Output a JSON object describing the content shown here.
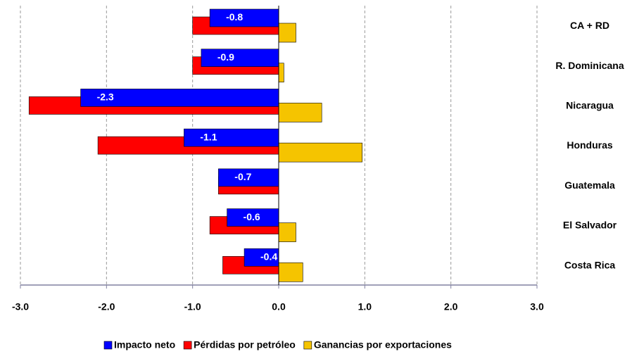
{
  "chart_data": {
    "type": "bar",
    "categories": [
      "CA + RD",
      "R. Dominicana",
      "Nicaragua",
      "Honduras",
      "Guatemala",
      "El Salvador",
      "Costa Rica"
    ],
    "series": [
      {
        "name": "Impacto neto",
        "color": "#0000ff",
        "values": [
          -0.8,
          -0.9,
          -2.3,
          -1.1,
          -0.7,
          -0.6,
          -0.4
        ]
      },
      {
        "name": "Pérdidas por petróleo",
        "color": "#ff0000",
        "values": [
          -1.0,
          -1.0,
          -2.9,
          -2.1,
          -0.7,
          -0.8,
          -0.65
        ]
      },
      {
        "name": "Ganancias por exportaciones",
        "color": "#f5c400",
        "values": [
          0.2,
          0.06,
          0.5,
          0.97,
          0,
          0.2,
          0.28
        ]
      }
    ],
    "xlim": [
      -3,
      3
    ],
    "xticks": [
      {
        "value": -3,
        "label": "-3.0"
      },
      {
        "value": -2,
        "label": "-2.0"
      },
      {
        "value": -1,
        "label": "-1.0"
      },
      {
        "value": 0,
        "label": "0.0"
      },
      {
        "value": 1,
        "label": "1.0"
      },
      {
        "value": 2,
        "label": "2.0"
      },
      {
        "value": 3,
        "label": "3.0"
      }
    ],
    "grid": true
  }
}
